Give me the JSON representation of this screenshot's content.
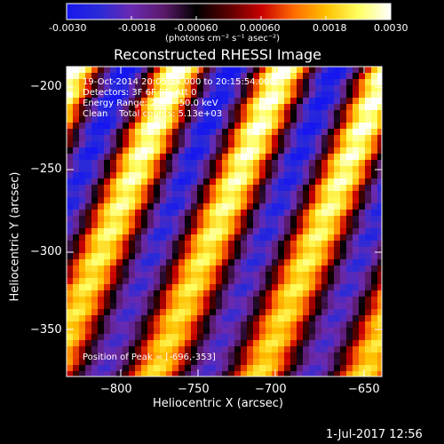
{
  "colorbar": {
    "ticks": [
      "-0.0030",
      "-0.0018",
      "-0.00060",
      "0.00060",
      "0.0018",
      "0.0030"
    ],
    "unit_label": "(photons cm⁻² s⁻¹ asec⁻²)",
    "colors": [
      "#1616f0",
      "#2a2ad8",
      "#6a2ab0",
      "#5a1a6a",
      "#000000",
      "#5a0000",
      "#c80000",
      "#ff6a00",
      "#ffc000",
      "#ffff60",
      "#ffffff"
    ]
  },
  "image": {
    "title": "Reconstructed RHESSI Image",
    "xlabel": "Heliocentric X (arcsec)",
    "ylabel": "Heliocentric Y (arcsec)",
    "x_ticks": [
      "−800",
      "−750",
      "−700",
      "−650"
    ],
    "y_ticks": [
      "−200",
      "−250",
      "−300",
      "−350"
    ],
    "info_lines": [
      "19-Oct-2014 20:05:54.000 to 20:15:54.000",
      "Detectors: 3F 6F 9F, Att 0",
      "Energy Range: 25.0 - 50.0 keV",
      "Clean    Total counts: 5.13e+03"
    ],
    "peak_label": "Position of Peak = [-696,-353]"
  },
  "footer": {
    "date": "1-Jul-2017 12:56"
  }
}
